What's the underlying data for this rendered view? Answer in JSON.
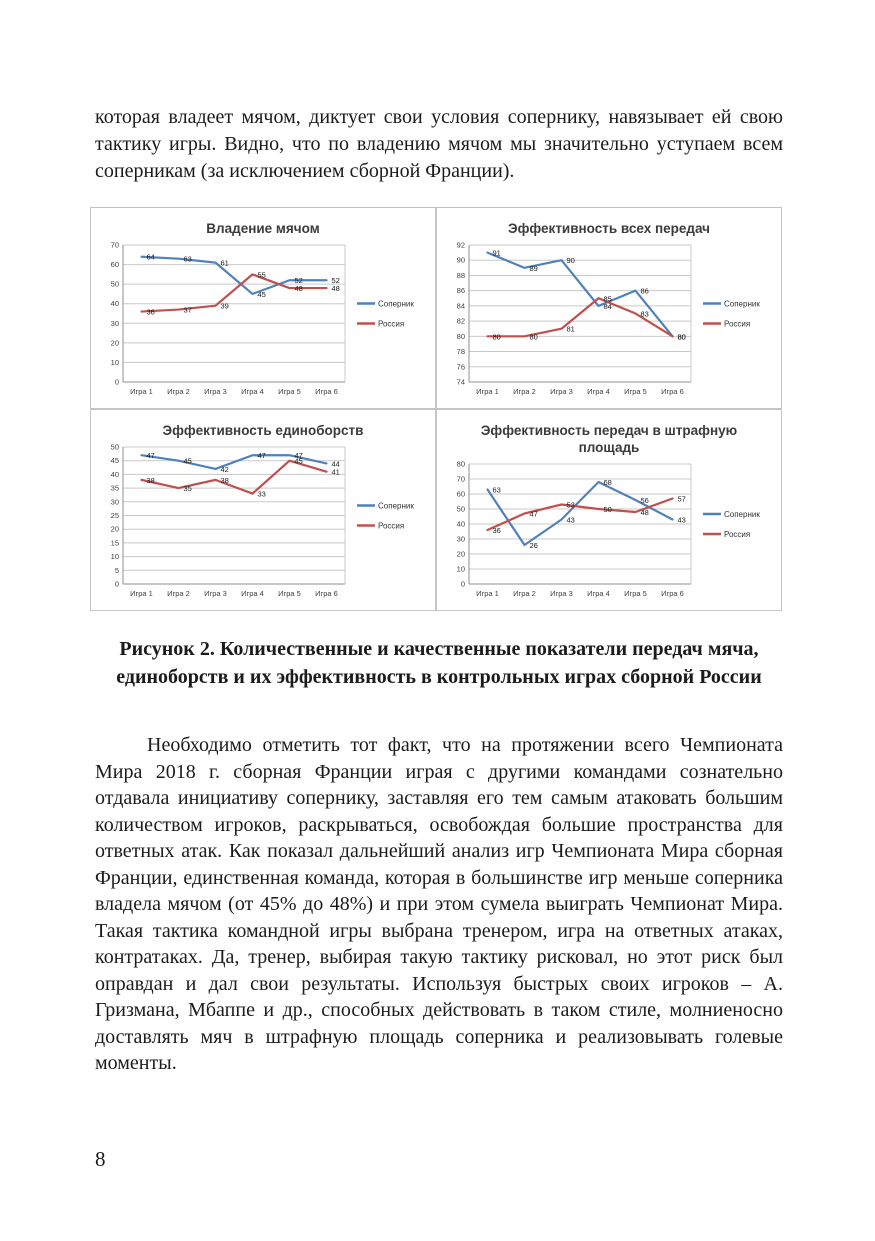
{
  "page": {
    "number": "8"
  },
  "intro_paragraph": "которая владеет мячом, диктует свои условия сопернику, навязывает ей свою тактику игры. Видно, что по владению мячом мы значительно уступаем всем соперникам (за исключением сборной Франции).",
  "figure_caption": "Рисунок 2. Количественные и качественные показатели передач мяча, единоборств и их эффективность в контрольных играх сборной России",
  "body_paragraph": "Необходимо отметить тот факт, что на протяжении всего Чемпионата Мира 2018 г. сборная Франции играя с другими командами сознательно отдавала инициативу сопернику, заставляя его тем самым атаковать большим количеством игроков, раскрываться, освобождая большие пространства для ответных атак. Как показал дальнейший анализ игр Чемпионата Мира сборная Франции, единственная команда, которая в большинстве игр меньше соперника владела мячом (от 45% до 48%) и при этом сумела выиграть Чемпионат Мира. Такая тактика командной игры выбрана тренером, игра на ответных атаках, контратаках. Да, тренер, выбирая такую тактику рисковал, но этот риск был оправдан и дал свои результаты. Используя быстрых своих игроков – А. Гризмана, Мбаппе и др., способных действовать в таком стиле, молниеносно доставлять мяч в штрафную площадь соперника и реализовывать голевые моменты.",
  "colors": {
    "opponent_line": "#4F81BD",
    "russia_line": "#C0504D",
    "gridline": "#c9c9c9",
    "axis": "#8f8f8f",
    "chart_title": "#3b3b3b"
  },
  "chart_data": [
    {
      "type": "line",
      "title": "Владение мячом",
      "categories": [
        "Игра 1",
        "Игра 2",
        "Игра 3",
        "Игра 4",
        "Игра 5",
        "Игра 6"
      ],
      "series": [
        {
          "name": "Соперник",
          "color": "#4F81BD",
          "values": [
            64,
            63,
            61,
            45,
            52,
            52
          ]
        },
        {
          "name": "Россия",
          "color": "#C0504D",
          "values": [
            36,
            37,
            39,
            55,
            48,
            48
          ]
        }
      ],
      "ylim": [
        0,
        70
      ],
      "ytick": 10,
      "grid": true,
      "legend_position": "right",
      "data_labels": true
    },
    {
      "type": "line",
      "title": "Эффективность всех передач",
      "categories": [
        "Игра 1",
        "Игра 2",
        "Игра 3",
        "Игра 4",
        "Игра 5",
        "Игра 6"
      ],
      "series": [
        {
          "name": "Соперник",
          "color": "#4F81BD",
          "values": [
            91,
            89,
            90,
            84,
            86,
            80
          ]
        },
        {
          "name": "Россия",
          "color": "#C0504D",
          "values": [
            80,
            80,
            81,
            85,
            83,
            80
          ]
        }
      ],
      "ylim": [
        74,
        92
      ],
      "ytick": 2,
      "grid": true,
      "legend_position": "right",
      "data_labels": true
    },
    {
      "type": "line",
      "title": "Эффективность единоборств",
      "categories": [
        "Игра 1",
        "Игра 2",
        "Игра 3",
        "Игра 4",
        "Игра 5",
        "Игра 6"
      ],
      "series": [
        {
          "name": "Соперник",
          "color": "#4F81BD",
          "values": [
            47,
            45,
            42,
            47,
            47,
            44
          ]
        },
        {
          "name": "Россия",
          "color": "#C0504D",
          "values": [
            38,
            35,
            38,
            33,
            45,
            41
          ]
        }
      ],
      "ylim": [
        0,
        50
      ],
      "ytick": 5,
      "grid": true,
      "legend_position": "right",
      "data_labels": true
    },
    {
      "type": "line",
      "title": "Эффективность передач в штрафную площадь",
      "categories": [
        "Игра 1",
        "Игра 2",
        "Игра 3",
        "Игра 4",
        "Игра 5",
        "Игра 6"
      ],
      "series": [
        {
          "name": "Соперник",
          "color": "#4F81BD",
          "values": [
            63,
            26,
            43,
            68,
            56,
            43
          ]
        },
        {
          "name": "Россия",
          "color": "#C0504D",
          "values": [
            36,
            47,
            53,
            50,
            48,
            57
          ]
        }
      ],
      "ylim": [
        0,
        80
      ],
      "ytick": 10,
      "grid": true,
      "legend_position": "right",
      "data_labels": true
    }
  ]
}
